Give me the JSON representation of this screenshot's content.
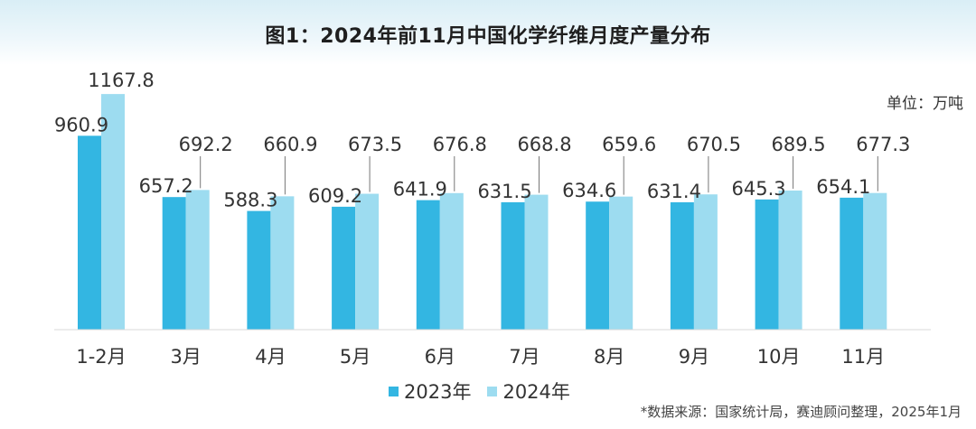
{
  "title": "图1：2024年前11月中国化学纤维月度产量分布",
  "unit_label": "单位：万吨",
  "source": "*数据来源：国家统计局，赛迪顾问整理，2025年1月",
  "colors": {
    "series_2023": "#33b6e2",
    "series_2024": "#9ddcf0"
  },
  "chart_data": {
    "type": "bar",
    "categories": [
      "1-2月",
      "3月",
      "4月",
      "5月",
      "6月",
      "7月",
      "8月",
      "9月",
      "10月",
      "11月"
    ],
    "series": [
      {
        "name": "2023年",
        "values": [
          960.9,
          657.2,
          588.3,
          609.2,
          641.9,
          631.5,
          634.6,
          631.4,
          645.3,
          654.1
        ]
      },
      {
        "name": "2024年",
        "values": [
          1167.8,
          692.2,
          660.9,
          673.5,
          676.8,
          668.8,
          659.6,
          670.5,
          689.5,
          677.3
        ]
      }
    ],
    "title": "图1：2024年前11月中国化学纤维月度产量分布",
    "xlabel": "",
    "ylabel": "",
    "grid": false,
    "legend": "bottom"
  }
}
